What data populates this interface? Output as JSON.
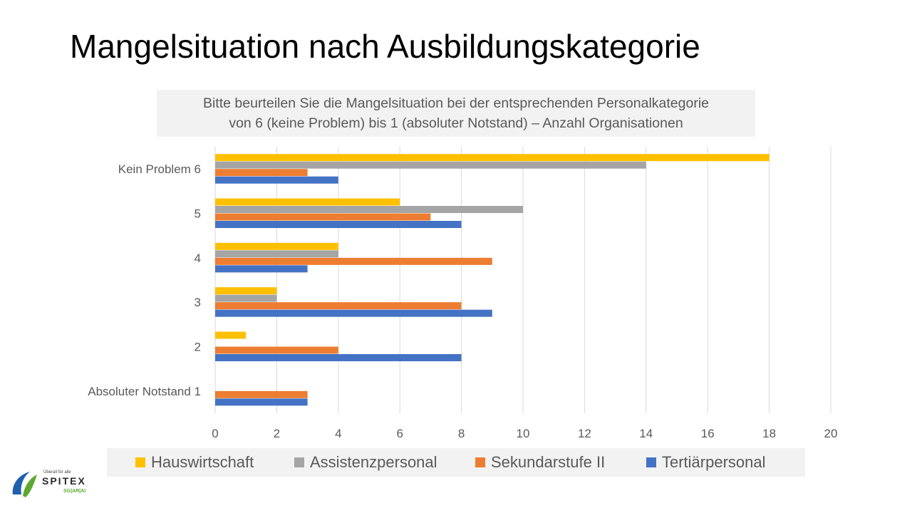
{
  "slide": {
    "title": "Mangelsituation nach Ausbildungskategorie"
  },
  "chart_data": {
    "type": "bar",
    "orientation": "horizontal",
    "title_lines": [
      "Bitte beurteilen Sie die Mangelsituation bei der entsprechenden Personalkategorie",
      "von 6 (keine Problem) bis 1 (absoluter Notstand) – Anzahl Organisationen"
    ],
    "categories": [
      "Kein Problem 6",
      "5",
      "4",
      "3",
      "2",
      "Absoluter Notstand 1"
    ],
    "series": [
      {
        "name": "Hauswirtschaft",
        "color": "#FFC000",
        "values": [
          18,
          6,
          4,
          2,
          1,
          0
        ]
      },
      {
        "name": "Assistenzpersonal",
        "color": "#A5A5A5",
        "values": [
          14,
          10,
          4,
          2,
          0,
          0
        ]
      },
      {
        "name": "Sekundarstufe II",
        "color": "#ED7D31",
        "values": [
          3,
          7,
          9,
          8,
          4,
          3
        ]
      },
      {
        "name": "Tertiärpersonal",
        "color": "#4472C4",
        "values": [
          4,
          8,
          3,
          9,
          8,
          3
        ]
      }
    ],
    "xlim": [
      0,
      20
    ],
    "xticks": [
      0,
      2,
      4,
      6,
      8,
      10,
      12,
      14,
      16,
      18,
      20
    ],
    "grid": true,
    "legend_position": "bottom"
  },
  "logo": {
    "tagline": "Überall für alle",
    "name": "SPITEX",
    "region": "SG|AR|AI"
  }
}
